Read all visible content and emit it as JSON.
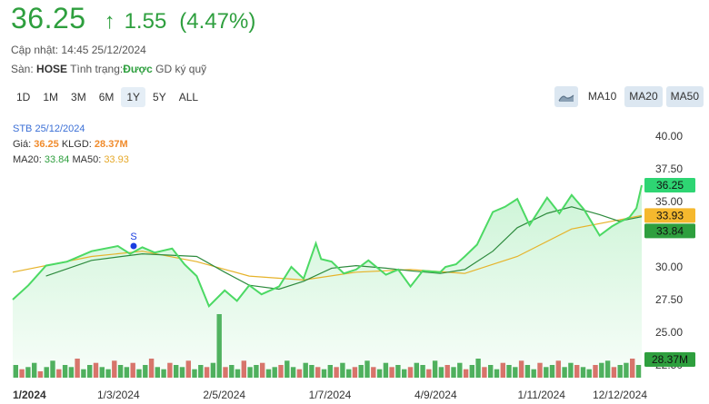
{
  "quote": {
    "price": "36.25",
    "arrow": "↑",
    "change": "1.55",
    "change_pct": "(4.47%)",
    "updated_label": "Cập nhật:",
    "updated_time": "14:45 25/12/2024",
    "exchange_label": "Sàn:",
    "exchange": "HOSE",
    "status_label": "Tình trạng:",
    "status": "Được",
    "status_suffix": "GD ký quỹ"
  },
  "ranges": [
    "1D",
    "1M",
    "3M",
    "6M",
    "1Y",
    "5Y",
    "ALL"
  ],
  "active_range": "1Y",
  "ma_buttons": [
    "MA10",
    "MA20",
    "MA50"
  ],
  "active_ma": "MA20",
  "info": {
    "symbol_date": "STB 25/12/2024",
    "price_label": "Giá:",
    "price_value": "36.25",
    "vol_label": "KLGD:",
    "vol_value": "28.37M",
    "ma20_label": "MA20:",
    "ma20_value": "33.84",
    "ma50_label": "MA50:",
    "ma50_value": "33.93"
  },
  "colors": {
    "up": "#2e9f3e",
    "price_line": "#4cd964",
    "ma20": "#2e8b3e",
    "ma50": "#e6b32a",
    "vol_up": "#2e9f3e",
    "vol_down": "#d9534f",
    "signal": "#1a3ee0"
  },
  "chart_data": {
    "type": "line",
    "title": "",
    "symbol": "STB",
    "x_start": "2024-01-01",
    "x_end": "2024-12-25",
    "ylim": [
      22.5,
      40.0
    ],
    "y_ticks": [
      "40.00",
      "37.50",
      "35.00",
      "32.50",
      "30.00",
      "27.50",
      "25.00",
      "22.50"
    ],
    "x_tick_labels": [
      "1/2024",
      "1/3/2024",
      "2/5/2024",
      "1/7/2024",
      "4/9/2024",
      "1/11/2024",
      "12/12/2024"
    ],
    "series": [
      {
        "name": "Giá",
        "x": [
          "2024-01-01",
          "2024-01-10",
          "2024-01-20",
          "2024-02-01",
          "2024-02-15",
          "2024-03-01",
          "2024-03-08",
          "2024-03-15",
          "2024-03-22",
          "2024-04-01",
          "2024-04-08",
          "2024-04-15",
          "2024-04-22",
          "2024-05-01",
          "2024-05-08",
          "2024-05-15",
          "2024-05-22",
          "2024-06-01",
          "2024-06-08",
          "2024-06-15",
          "2024-06-22",
          "2024-06-25",
          "2024-07-01",
          "2024-07-08",
          "2024-07-15",
          "2024-07-22",
          "2024-08-01",
          "2024-08-08",
          "2024-08-15",
          "2024-08-22",
          "2024-09-01",
          "2024-09-04",
          "2024-09-10",
          "2024-09-15",
          "2024-09-22",
          "2024-10-01",
          "2024-10-08",
          "2024-10-15",
          "2024-10-22",
          "2024-11-01",
          "2024-11-08",
          "2024-11-15",
          "2024-11-22",
          "2024-12-01",
          "2024-12-08",
          "2024-12-12",
          "2024-12-18",
          "2024-12-22",
          "2024-12-25"
        ],
        "values": [
          27.5,
          28.6,
          30.1,
          30.4,
          31.2,
          31.6,
          31.0,
          31.5,
          31.1,
          31.4,
          30.2,
          29.3,
          27.0,
          28.2,
          27.4,
          28.6,
          27.9,
          28.5,
          30.0,
          29.1,
          31.8,
          30.6,
          30.4,
          29.5,
          29.8,
          30.5,
          29.4,
          29.8,
          28.5,
          29.7,
          29.6,
          30.0,
          30.2,
          30.8,
          31.7,
          34.2,
          34.6,
          35.2,
          33.2,
          35.3,
          34.1,
          35.5,
          34.4,
          32.4,
          33.1,
          33.4,
          33.8,
          34.5,
          36.25
        ]
      },
      {
        "name": "MA20",
        "x": [
          "2024-01-20",
          "2024-02-15",
          "2024-03-15",
          "2024-04-15",
          "2024-05-01",
          "2024-05-15",
          "2024-06-01",
          "2024-06-15",
          "2024-07-01",
          "2024-07-15",
          "2024-08-01",
          "2024-08-15",
          "2024-09-01",
          "2024-09-15",
          "2024-10-01",
          "2024-10-15",
          "2024-11-01",
          "2024-11-15",
          "2024-12-01",
          "2024-12-12",
          "2024-12-25"
        ],
        "values": [
          29.3,
          30.5,
          31.0,
          30.8,
          29.6,
          28.6,
          28.3,
          28.9,
          29.9,
          30.1,
          29.9,
          29.7,
          29.5,
          29.8,
          31.2,
          33.0,
          34.1,
          34.6,
          34.0,
          33.5,
          33.84
        ]
      },
      {
        "name": "MA50",
        "x": [
          "2024-01-01",
          "2024-02-15",
          "2024-03-15",
          "2024-04-15",
          "2024-05-15",
          "2024-06-15",
          "2024-07-15",
          "2024-08-15",
          "2024-09-15",
          "2024-10-15",
          "2024-11-15",
          "2024-12-12",
          "2024-12-25"
        ],
        "values": [
          29.6,
          30.8,
          31.2,
          30.4,
          29.3,
          29.0,
          29.6,
          29.8,
          29.5,
          30.8,
          32.9,
          33.6,
          33.93
        ]
      }
    ],
    "volume": {
      "unit": "M",
      "last": 28.37,
      "values": [
        6,
        4,
        5,
        7,
        3,
        5,
        8,
        4,
        6,
        5,
        9,
        4,
        6,
        7,
        5,
        4,
        8,
        6,
        5,
        7,
        4,
        6,
        9,
        5,
        4,
        7,
        6,
        5,
        8,
        4,
        6,
        5,
        7,
        30,
        5,
        6,
        4,
        8,
        5,
        6,
        7,
        4,
        5,
        6,
        8,
        5,
        4,
        7,
        6,
        5,
        4,
        6,
        5,
        7,
        4,
        5,
        6,
        8,
        5,
        4,
        7,
        5,
        6,
        4,
        5,
        7,
        6,
        4,
        8,
        5,
        6,
        5,
        7,
        4,
        6,
        9,
        5,
        6,
        4,
        7,
        6,
        5,
        8,
        6,
        4,
        7,
        5,
        6,
        8,
        5,
        7,
        6,
        5,
        4,
        6,
        7,
        8,
        5,
        6,
        7,
        9,
        6
      ]
    },
    "signals": [
      {
        "label": "S",
        "x": "2024-03-10",
        "y": 31.6
      }
    ],
    "price_tags": [
      {
        "label": "36.25",
        "value": 36.25,
        "color": "#2ed573"
      },
      {
        "label": "33.93",
        "value": 33.93,
        "color": "#f5b82e"
      },
      {
        "label": "33.84",
        "value": 33.84,
        "color": "#2e9f3e"
      },
      {
        "label": "28.37M",
        "value": 22.3,
        "color": "#2e9f3e"
      }
    ],
    "grid": false
  }
}
